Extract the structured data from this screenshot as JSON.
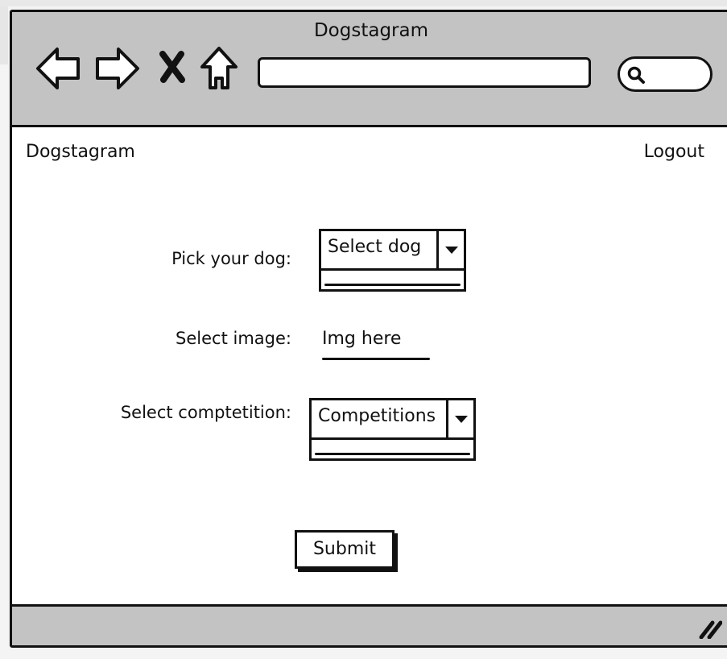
{
  "window": {
    "title": "Dogstagram"
  },
  "browser": {
    "back_icon": "back-arrow-icon",
    "forward_icon": "forward-arrow-icon",
    "stop_icon": "close-x-icon",
    "home_icon": "home-icon",
    "search_icon": "search-icon",
    "address_value": ""
  },
  "header": {
    "brand": "Dogstagram",
    "logout": "Logout"
  },
  "form": {
    "dog_label": "Pick your dog:",
    "dog_select": "Select dog",
    "image_label": "Select image:",
    "image_link": "Img here",
    "competition_label": "Select comptetition:",
    "competition_select": "Competitions",
    "submit_label": "Submit"
  },
  "colors": {
    "chrome": "#c3c3c3",
    "ink": "#111111",
    "page": "#ffffff"
  }
}
